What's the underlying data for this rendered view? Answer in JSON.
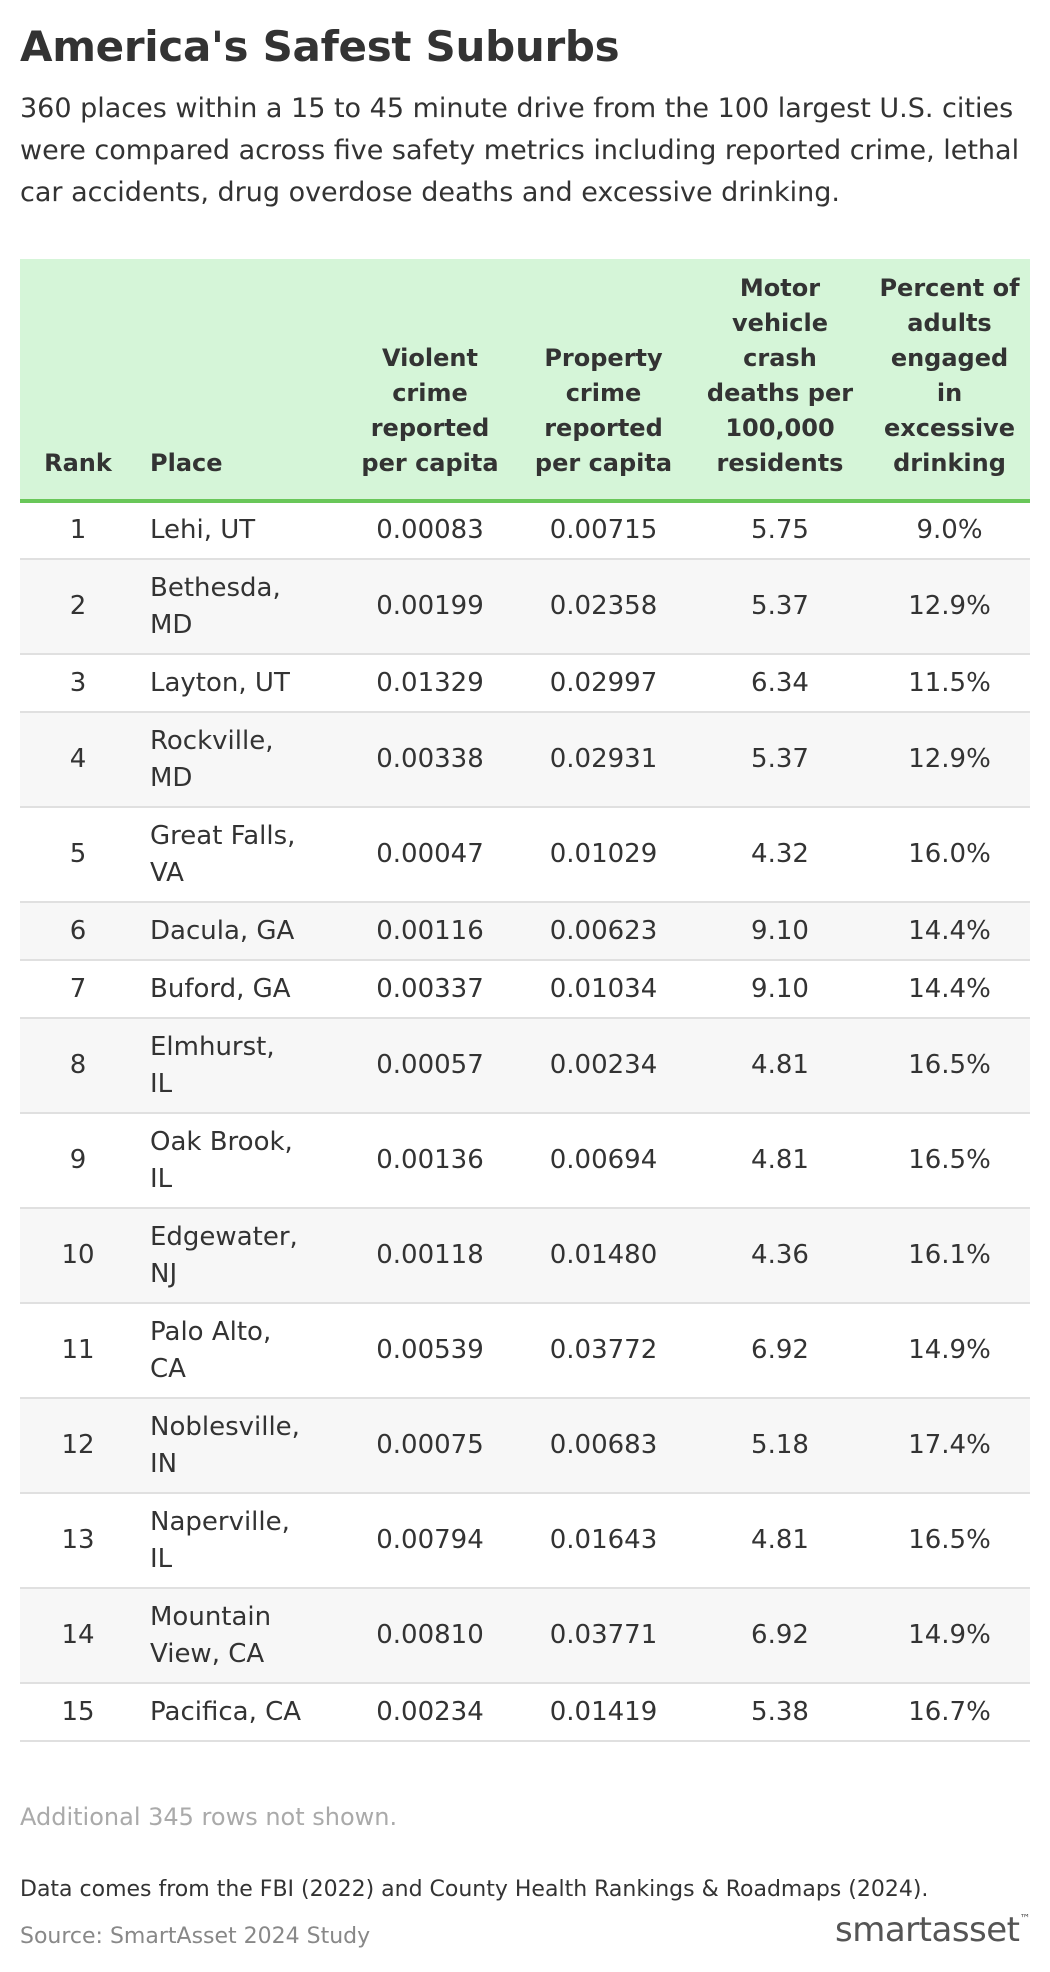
{
  "title": "America's Safest Suburbs",
  "subtitle": "360 places within a 15 to 45 minute drive from the 100 largest U.S. cities were compared across five safety metrics including reported crime, lethal car accidents, drug overdose deaths and excessive drinking.",
  "table": {
    "columns": [
      "Rank",
      "Place",
      "Violent crime reported per capita",
      "Property crime reported per capita",
      "Motor vehicle crash deaths per 100,000 residents",
      "Percent of adults engaged in excessive drinking"
    ],
    "rows": [
      [
        "1",
        "Lehi, UT",
        "0.00083",
        "0.00715",
        "5.75",
        "9.0%"
      ],
      [
        "2",
        "Bethesda, MD",
        "0.00199",
        "0.02358",
        "5.37",
        "12.9%"
      ],
      [
        "3",
        "Layton, UT",
        "0.01329",
        "0.02997",
        "6.34",
        "11.5%"
      ],
      [
        "4",
        "Rockville, MD",
        "0.00338",
        "0.02931",
        "5.37",
        "12.9%"
      ],
      [
        "5",
        "Great Falls, VA",
        "0.00047",
        "0.01029",
        "4.32",
        "16.0%"
      ],
      [
        "6",
        "Dacula, GA",
        "0.00116",
        "0.00623",
        "9.10",
        "14.4%"
      ],
      [
        "7",
        "Buford, GA",
        "0.00337",
        "0.01034",
        "9.10",
        "14.4%"
      ],
      [
        "8",
        "Elmhurst, IL",
        "0.00057",
        "0.00234",
        "4.81",
        "16.5%"
      ],
      [
        "9",
        "Oak Brook, IL",
        "0.00136",
        "0.00694",
        "4.81",
        "16.5%"
      ],
      [
        "10",
        "Edgewater, NJ",
        "0.00118",
        "0.01480",
        "4.36",
        "16.1%"
      ],
      [
        "11",
        "Palo Alto, CA",
        "0.00539",
        "0.03772",
        "6.92",
        "14.9%"
      ],
      [
        "12",
        "Noblesville, IN",
        "0.00075",
        "0.00683",
        "5.18",
        "17.4%"
      ],
      [
        "13",
        "Naperville, IL",
        "0.00794",
        "0.01643",
        "4.81",
        "16.5%"
      ],
      [
        "14",
        "Mountain View, CA",
        "0.00810",
        "0.03771",
        "6.92",
        "14.9%"
      ],
      [
        "15",
        "Pacifica, CA",
        "0.00234",
        "0.01419",
        "5.38",
        "16.7%"
      ]
    ]
  },
  "note": "Additional 345 rows not shown.",
  "footer": {
    "data_source": "Data comes from the FBI (2022) and County Health Rankings & Roadmaps (2024).",
    "credit": "Source: SmartAsset 2024 Study",
    "logo_text": "smartasset",
    "logo_tm": "™"
  },
  "colors": {
    "header_bg": "#d5f5d8",
    "header_border": "#69c759",
    "stripe_bg": "#f7f7f7"
  }
}
